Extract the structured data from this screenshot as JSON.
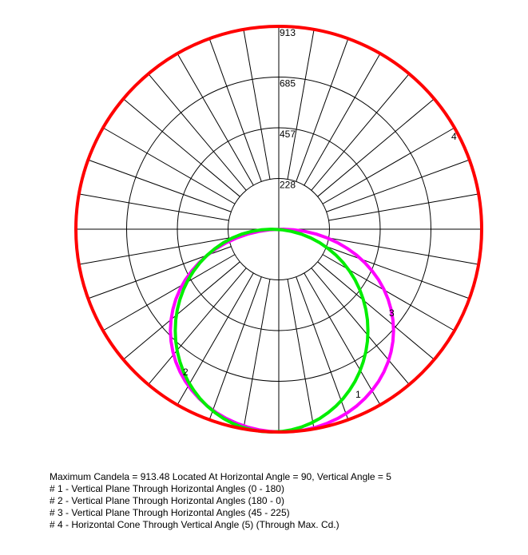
{
  "chart_data": {
    "type": "polar",
    "title": "",
    "radial_ticks": [
      "228",
      "457",
      "685",
      "913"
    ],
    "radial_max": 913.48,
    "angle_step_deg": 10,
    "series": [
      {
        "label": "1",
        "color": "#00ee00",
        "shape": "lower-lobe",
        "values_by_angle_from_nadir": [
          {
            "angle": 0,
            "candela": 913
          },
          {
            "angle": 15,
            "candela": 882
          },
          {
            "angle": 30,
            "candela": 790
          },
          {
            "angle": 45,
            "candela": 645
          },
          {
            "angle": 60,
            "candela": 457
          },
          {
            "angle": 75,
            "candela": 236
          },
          {
            "angle": 90,
            "candela": 0
          }
        ]
      },
      {
        "label": "2",
        "color": "#00ee00",
        "shape": "lower-lobe",
        "values_by_angle_from_nadir": [
          {
            "angle": 0,
            "candela": 913
          },
          {
            "angle": 15,
            "candela": 882
          },
          {
            "angle": 30,
            "candela": 790
          },
          {
            "angle": 45,
            "candela": 645
          },
          {
            "angle": 60,
            "candela": 457
          },
          {
            "angle": 75,
            "candela": 236
          },
          {
            "angle": 90,
            "candela": 0
          }
        ]
      },
      {
        "label": "3",
        "color": "#ff00ff",
        "shape": "lower-lobe-offset",
        "values_by_angle_from_nadir": [
          {
            "angle": -80,
            "candela": 200
          },
          {
            "angle": -60,
            "candela": 500
          },
          {
            "angle": -40,
            "candela": 760
          },
          {
            "angle": -20,
            "candela": 890
          },
          {
            "angle": 0,
            "candela": 913
          },
          {
            "angle": 20,
            "candela": 860
          },
          {
            "angle": 40,
            "candela": 730
          },
          {
            "angle": 60,
            "candela": 520
          },
          {
            "angle": 80,
            "candela": 230
          }
        ]
      },
      {
        "label": "4",
        "color": "#ff0000",
        "shape": "full-circle",
        "constant_candela": 913.48
      }
    ],
    "label_positions_note": "labels 1-4 shown near curves",
    "legend": [
      "Maximum Candela = 913.48   Located At Horizontal Angle = 90, Vertical Angle = 5",
      "# 1 - Vertical Plane Through Horizontal Angles (0 - 180)",
      "# 2 - Vertical Plane Through Horizontal Angles (180 - 0)",
      "# 3 - Vertical Plane Through Horizontal Angles (45 - 225)",
      "# 4 - Horizontal Cone Through Vertical Angle (5) (Through Max. Cd.)"
    ]
  }
}
